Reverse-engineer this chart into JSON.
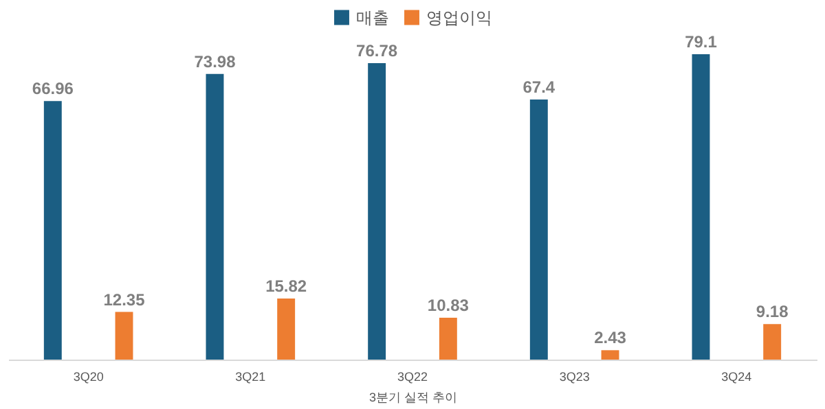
{
  "chart_data": {
    "type": "bar",
    "xlabel": "3분기 실적 추이",
    "categories": [
      "3Q20",
      "3Q21",
      "3Q22",
      "3Q23",
      "3Q24"
    ],
    "series": [
      {
        "name": "매출",
        "color": "#1b5e83",
        "values": [
          66.96,
          73.98,
          76.78,
          67.4,
          79.1
        ]
      },
      {
        "name": "영업이익",
        "color": "#ed7d31",
        "values": [
          12.35,
          15.82,
          10.83,
          2.43,
          9.18
        ]
      }
    ],
    "data_labels": true,
    "legend": "top"
  }
}
